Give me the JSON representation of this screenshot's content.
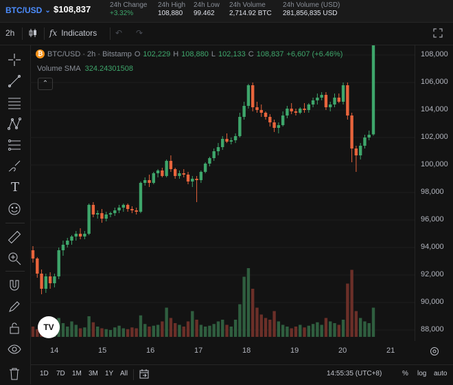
{
  "header": {
    "pair": "BTC/USD",
    "price": "$108,837",
    "stats": [
      {
        "label": "24h Change",
        "value": "+3.32%",
        "positive": true
      },
      {
        "label": "24h High",
        "value": "108,880"
      },
      {
        "label": "24h Low",
        "value": "99.462"
      },
      {
        "label": "24h Volume",
        "value": "2,714.92 BTC"
      },
      {
        "label": "24h Volume (USD)",
        "value": "281,856,835 USD"
      }
    ]
  },
  "toolbar": {
    "interval": "2h",
    "indicators": "Indicators"
  },
  "legend": {
    "symbol": "BTC/USD · 2h · Bitstamp",
    "o_label": "O",
    "o_value": "102,229",
    "h_label": "H",
    "h_value": "108,880",
    "l_label": "L",
    "l_value": "102,133",
    "c_label": "C",
    "c_value": "108,837",
    "change": "+6,607 (+6.46%)"
  },
  "volume_legend": {
    "label": "Volume SMA",
    "value": "324.24301508"
  },
  "colors": {
    "up": "#3ea66b",
    "down": "#e8643c",
    "vol_up": "#2f5e3f",
    "vol_down": "#6b2f28",
    "accent": "#4c8dff"
  },
  "chart_data": {
    "type": "candlestick",
    "y_ticks": [
      "108,000",
      "106,000",
      "104,000",
      "102,000",
      "100,000",
      "98,000",
      "96,000",
      "94,000",
      "92,000",
      "90,000",
      "88,000"
    ],
    "x_ticks": [
      "14",
      "15",
      "16",
      "17",
      "18",
      "19",
      "20",
      "21"
    ],
    "ylim": [
      87500,
      108300
    ],
    "candles": [
      [
        93800,
        94100,
        92900,
        93200
      ],
      [
        93200,
        93300,
        91800,
        92100
      ],
      [
        92100,
        92400,
        90600,
        91000
      ],
      [
        91000,
        92100,
        90700,
        91900
      ],
      [
        91900,
        92200,
        91000,
        91400
      ],
      [
        91400,
        92100,
        91100,
        91900
      ],
      [
        91900,
        94000,
        91700,
        93800
      ],
      [
        93800,
        94500,
        93400,
        94200
      ],
      [
        94200,
        94700,
        94000,
        94500
      ],
      [
        94500,
        94900,
        94200,
        94800
      ],
      [
        94800,
        95200,
        94500,
        95000
      ],
      [
        95000,
        95400,
        94600,
        94800
      ],
      [
        94800,
        95200,
        94600,
        95000
      ],
      [
        95000,
        97200,
        94900,
        97100
      ],
      [
        97100,
        97300,
        96200,
        96400
      ],
      [
        96400,
        96700,
        96100,
        96500
      ],
      [
        96500,
        96800,
        95800,
        96100
      ],
      [
        96100,
        96600,
        95900,
        96400
      ],
      [
        96400,
        96600,
        96200,
        96500
      ],
      [
        96500,
        96900,
        96300,
        96700
      ],
      [
        96700,
        97100,
        96500,
        96900
      ],
      [
        96900,
        97200,
        96600,
        97100
      ],
      [
        97100,
        97200,
        96600,
        96800
      ],
      [
        96800,
        97000,
        96500,
        96700
      ],
      [
        96700,
        96900,
        96400,
        96600
      ],
      [
        96600,
        98800,
        96500,
        98700
      ],
      [
        98700,
        99100,
        98500,
        98900
      ],
      [
        98900,
        99300,
        98400,
        98700
      ],
      [
        98700,
        99500,
        98600,
        99400
      ],
      [
        99400,
        99700,
        99100,
        99600
      ],
      [
        99600,
        99800,
        99100,
        99200
      ],
      [
        99200,
        100400,
        99100,
        100300
      ],
      [
        100300,
        100700,
        99500,
        99700
      ],
      [
        99700,
        99800,
        99000,
        99200
      ],
      [
        99200,
        99600,
        99000,
        99400
      ],
      [
        99400,
        99700,
        99100,
        99300
      ],
      [
        99300,
        99500,
        98600,
        98800
      ],
      [
        98800,
        99200,
        98400,
        99000
      ],
      [
        99000,
        99200,
        97300,
        98900
      ],
      [
        98900,
        99600,
        98700,
        99500
      ],
      [
        99500,
        100200,
        99400,
        100100
      ],
      [
        100100,
        100600,
        99900,
        100500
      ],
      [
        100500,
        101200,
        100300,
        101000
      ],
      [
        101000,
        101600,
        100700,
        101300
      ],
      [
        101300,
        102100,
        101100,
        101900
      ],
      [
        101900,
        102300,
        101600,
        101700
      ],
      [
        101700,
        102000,
        101500,
        101800
      ],
      [
        101800,
        102300,
        101600,
        102100
      ],
      [
        102100,
        103800,
        102000,
        103500
      ],
      [
        103500,
        104600,
        103300,
        104300
      ],
      [
        104300,
        105900,
        104100,
        105800
      ],
      [
        105800,
        106000,
        103900,
        104200
      ],
      [
        104200,
        104600,
        103800,
        104000
      ],
      [
        104000,
        104400,
        103500,
        103800
      ],
      [
        103800,
        103900,
        103300,
        103500
      ],
      [
        103500,
        103700,
        102800,
        103100
      ],
      [
        103100,
        103300,
        102400,
        102700
      ],
      [
        102700,
        103100,
        102300,
        102900
      ],
      [
        102900,
        103900,
        102800,
        103600
      ],
      [
        103600,
        104300,
        103400,
        104100
      ],
      [
        104100,
        104500,
        103700,
        103900
      ],
      [
        103900,
        104100,
        103600,
        103800
      ],
      [
        103800,
        104200,
        103700,
        104100
      ],
      [
        104100,
        104500,
        103800,
        104000
      ],
      [
        104000,
        104500,
        103800,
        104400
      ],
      [
        104400,
        104900,
        104200,
        104700
      ],
      [
        104700,
        105200,
        104400,
        104900
      ],
      [
        104900,
        105300,
        104700,
        105100
      ],
      [
        105100,
        105300,
        104000,
        104200
      ],
      [
        104200,
        104600,
        103900,
        104400
      ],
      [
        104400,
        105200,
        104200,
        104900
      ],
      [
        104900,
        105200,
        104500,
        104600
      ],
      [
        104600,
        106000,
        104400,
        105800
      ],
      [
        105800,
        106000,
        103300,
        103600
      ],
      [
        103600,
        103800,
        100200,
        101200
      ],
      [
        101200,
        101400,
        99500,
        100700
      ],
      [
        100700,
        101600,
        100400,
        101400
      ],
      [
        101400,
        102200,
        101200,
        102000
      ],
      [
        102000,
        102500,
        101800,
        102200
      ],
      [
        102229,
        108880,
        102133,
        108837
      ]
    ],
    "volumes": [
      12,
      9,
      8,
      10,
      7,
      14,
      22,
      16,
      12,
      18,
      14,
      10,
      11,
      24,
      17,
      12,
      10,
      9,
      8,
      11,
      13,
      10,
      9,
      11,
      10,
      25,
      15,
      12,
      13,
      14,
      18,
      34,
      22,
      16,
      14,
      12,
      18,
      30,
      20,
      14,
      12,
      13,
      15,
      18,
      20,
      14,
      12,
      20,
      38,
      70,
      80,
      56,
      34,
      26,
      22,
      20,
      30,
      18,
      14,
      12,
      10,
      12,
      14,
      11,
      13,
      15,
      17,
      14,
      22,
      18,
      16,
      14,
      20,
      62,
      78,
      30,
      22,
      18,
      16,
      34
    ]
  },
  "xaxis_labels": [
    "14",
    "15",
    "16",
    "17",
    "18",
    "19",
    "20",
    "21"
  ],
  "bottom": {
    "ranges": [
      "1D",
      "7D",
      "1M",
      "3M",
      "1Y",
      "All"
    ],
    "time": "14:55:35 (UTC+8)",
    "percent": "%",
    "log": "log",
    "auto": "auto"
  }
}
